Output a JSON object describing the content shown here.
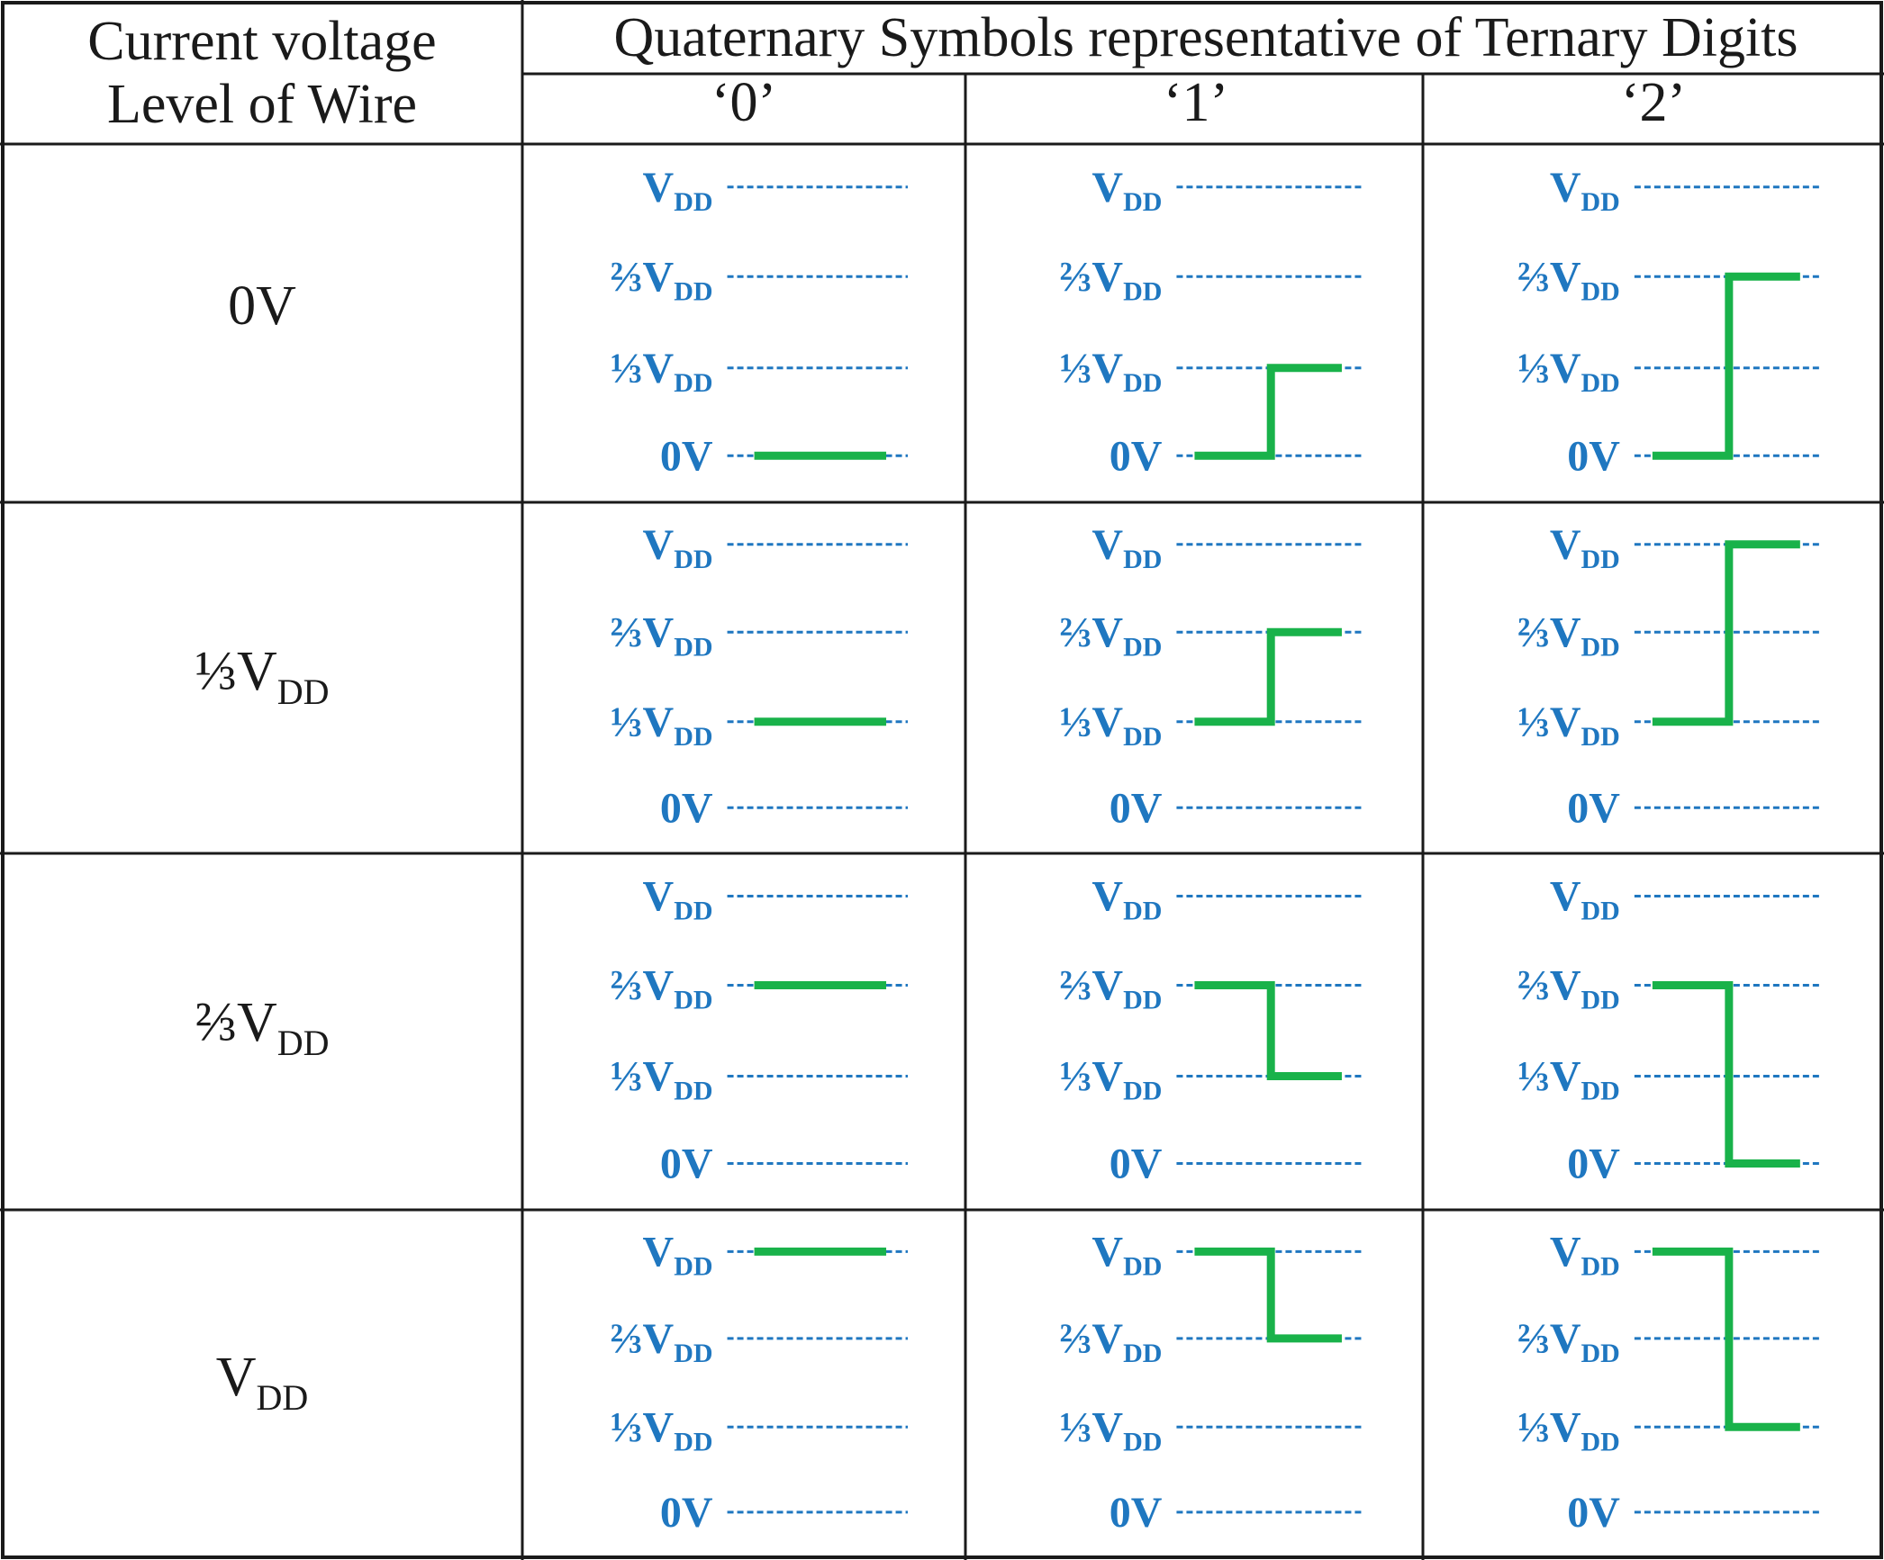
{
  "header": {
    "col0_line1": "Current voltage",
    "col0_line2": "Level of Wire",
    "group_title": "Quaternary Symbols representative of Ternary Digits",
    "digits": [
      "‘0’",
      "‘1’",
      "‘2’"
    ]
  },
  "level_labels": {
    "vdd": {
      "main": "V",
      "sub": "DD"
    },
    "two_thirds": {
      "frac": "⅔",
      "main": "V",
      "sub": "DD"
    },
    "one_third": {
      "frac": "⅓",
      "main": "V",
      "sub": "DD"
    },
    "zero": {
      "main": "0V"
    }
  },
  "rows": [
    {
      "label_frac": "",
      "label_main": "0V",
      "label_sub": "",
      "start_level": 0,
      "targets": [
        0,
        1,
        2
      ]
    },
    {
      "label_frac": "⅓",
      "label_main": "V",
      "label_sub": "DD",
      "start_level": 1,
      "targets": [
        1,
        2,
        3
      ]
    },
    {
      "label_frac": "⅔",
      "label_main": "V",
      "label_sub": "DD",
      "start_level": 2,
      "targets": [
        2,
        1,
        0
      ]
    },
    {
      "label_frac": "",
      "label_main": "V",
      "label_sub": "DD",
      "start_level": 3,
      "targets": [
        3,
        2,
        1
      ]
    }
  ],
  "colors": {
    "grid_line": "#1a1a1a",
    "level_text": "#1f77c0",
    "dashed_line": "#1f77c0",
    "waveform": "#19b24a"
  }
}
